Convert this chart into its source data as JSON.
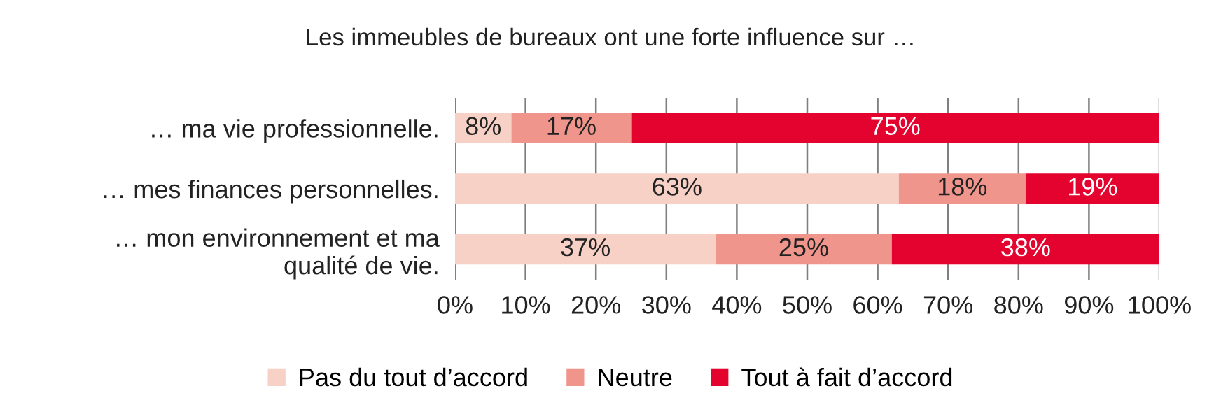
{
  "chart_data": {
    "type": "bar",
    "orientation": "horizontal",
    "stacked": true,
    "title": "Les immeubles de bureaux ont une forte influence sur …",
    "categories": [
      "… ma vie professionnelle.",
      "… mes finances personnelles.",
      "… mon environnement et ma\nqualité de vie."
    ],
    "series": [
      {
        "name": "Pas du tout d’accord",
        "color": "#f7d0c6",
        "values": [
          8,
          63,
          37
        ],
        "value_labels": [
          "8%",
          "63%",
          "37%"
        ]
      },
      {
        "name": "Neutre",
        "color": "#f0958c",
        "values": [
          17,
          18,
          25
        ],
        "value_labels": [
          "17%",
          "18%",
          "25%"
        ]
      },
      {
        "name": "Tout à fait d’accord",
        "color": "#e4032e",
        "values": [
          75,
          19,
          38
        ],
        "value_labels": [
          "75%",
          "19%",
          "38%"
        ]
      }
    ],
    "xlim": [
      0,
      100
    ],
    "xticks": [
      {
        "value": 0,
        "label": "0%"
      },
      {
        "value": 10,
        "label": "10%"
      },
      {
        "value": 20,
        "label": "20%"
      },
      {
        "value": 30,
        "label": "30%"
      },
      {
        "value": 40,
        "label": "40%"
      },
      {
        "value": 50,
        "label": "50%"
      },
      {
        "value": 60,
        "label": "60%"
      },
      {
        "value": 70,
        "label": "70%"
      },
      {
        "value": 80,
        "label": "80%"
      },
      {
        "value": 90,
        "label": "90%"
      },
      {
        "value": 100,
        "label": "100%"
      }
    ],
    "grid": "x",
    "legend": "bottom"
  }
}
